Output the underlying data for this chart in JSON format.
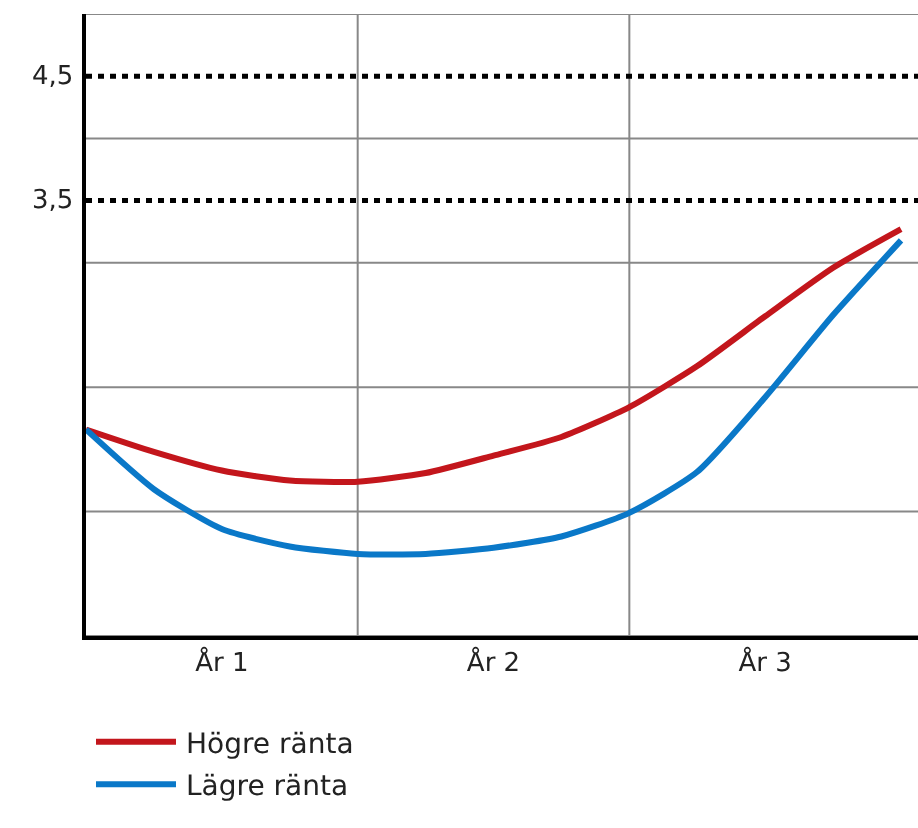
{
  "chart_data": {
    "type": "line",
    "categories": [
      null,
      null,
      "År 1",
      null,
      null,
      null,
      "År 2",
      null,
      null,
      null,
      "År 3",
      null,
      null
    ],
    "series": [
      {
        "name": "Högre ränta",
        "color": "#c3161c",
        "values": [
          1.66,
          1.48,
          1.33,
          1.25,
          1.24,
          1.31,
          1.45,
          1.6,
          1.84,
          2.17,
          2.57,
          2.96,
          3.27
        ]
      },
      {
        "name": "Lägre ränta",
        "color": "#0a78c8",
        "values": [
          1.66,
          1.18,
          0.86,
          0.72,
          0.66,
          0.66,
          0.71,
          0.8,
          0.99,
          1.32,
          1.92,
          2.58,
          3.18
        ]
      }
    ],
    "ylim": [
      0,
      5
    ],
    "yticks": [
      {
        "value": 0,
        "label": null
      },
      {
        "value": 1,
        "label": null
      },
      {
        "value": 2,
        "label": null
      },
      {
        "value": 3,
        "label": null
      },
      {
        "value": 4,
        "label": null
      },
      {
        "value": 5,
        "label": null
      }
    ],
    "ref_lines": [
      {
        "axis": "y",
        "value": 4.5,
        "label": "4,5",
        "color": "#000000",
        "line_style": "dotted"
      },
      {
        "axis": "y",
        "value": 3.5,
        "label": "3,5",
        "color": "#000000",
        "line_style": "dotted"
      }
    ],
    "grid": true,
    "legend": "bottom left",
    "line_style": "solid",
    "marker": "none"
  }
}
